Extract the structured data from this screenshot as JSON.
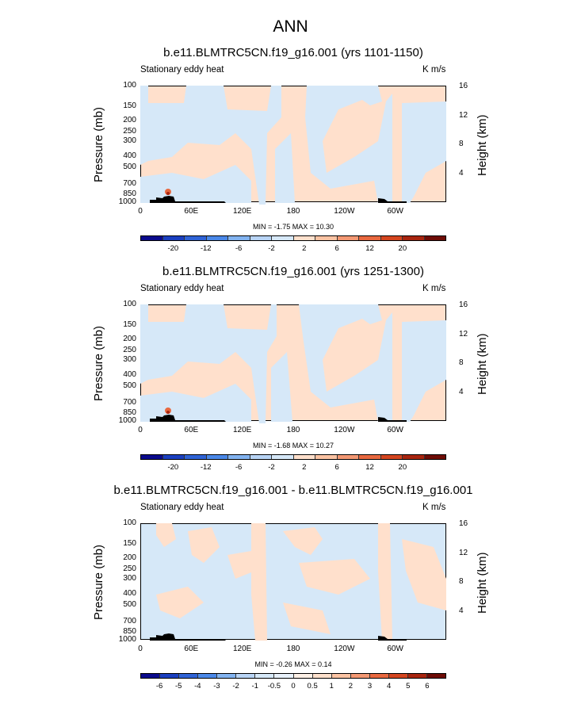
{
  "title": "ANN",
  "colors": {
    "positive_fill": "#ffe0cc",
    "negative_fill": "#d6e8f8",
    "topography": "#000000"
  },
  "colorbar_top": {
    "labels": [
      "-20",
      "-12",
      "-6",
      "-2",
      "2",
      "6",
      "12",
      "20"
    ],
    "colors": [
      "#0a0a8c",
      "#1a3fc0",
      "#2f63d6",
      "#4a88e8",
      "#82b3f0",
      "#b8d4f5",
      "#d6e8f8",
      "#ffe0cc",
      "#fbc3a3",
      "#f39873",
      "#e8683f",
      "#d4451f",
      "#a8250f",
      "#6e0c06"
    ]
  },
  "colorbar_diff": {
    "labels": [
      "-6",
      "-5",
      "-4",
      "-3",
      "-2",
      "-1",
      "-0.5",
      "0",
      "0.5",
      "1",
      "2",
      "3",
      "4",
      "5",
      "6"
    ],
    "colors": [
      "#0a0a8c",
      "#1a3fc0",
      "#2f63d6",
      "#4a88e8",
      "#82b3f0",
      "#b8d4f5",
      "#d6e8f8",
      "#e8f1fb",
      "#fff0e6",
      "#ffe0cc",
      "#fbc3a3",
      "#f39873",
      "#e8683f",
      "#d4451f",
      "#a8250f",
      "#6e0c06"
    ]
  },
  "chart_data": [
    {
      "type": "heatmap",
      "title": "b.e11.BLMTRC5CN.f19_g16.001 (yrs 1101-1150)",
      "variable": "Stationary eddy heat",
      "units": "K m/s",
      "ylabel": "Pressure (mb)",
      "y2label": "Height (km)",
      "yticks": [
        "100",
        "150",
        "200",
        "250",
        "300",
        "400",
        "500",
        "700",
        "850",
        "1000"
      ],
      "y2ticks": [
        "16",
        "12",
        "8",
        "4"
      ],
      "xticks": [
        "0",
        "60E",
        "120E",
        "180",
        "120W",
        "60W"
      ],
      "stats": "MIN =  -1.75  MAX =  10.30",
      "min": -1.75,
      "max": 10.3
    },
    {
      "type": "heatmap",
      "title": "b.e11.BLMTRC5CN.f19_g16.001 (yrs 1251-1300)",
      "variable": "Stationary eddy heat",
      "units": "K m/s",
      "ylabel": "Pressure (mb)",
      "y2label": "Height (km)",
      "yticks": [
        "100",
        "150",
        "200",
        "250",
        "300",
        "400",
        "500",
        "700",
        "850",
        "1000"
      ],
      "y2ticks": [
        "16",
        "12",
        "8",
        "4"
      ],
      "xticks": [
        "0",
        "60E",
        "120E",
        "180",
        "120W",
        "60W"
      ],
      "stats": "MIN =  -1.68  MAX =  10.27",
      "min": -1.68,
      "max": 10.27
    },
    {
      "type": "heatmap",
      "title": "b.e11.BLMTRC5CN.f19_g16.001 - b.e11.BLMTRC5CN.f19_g16.001",
      "variable": "Stationary eddy heat",
      "units": "K m/s",
      "ylabel": "Pressure (mb)",
      "y2label": "Height (km)",
      "yticks": [
        "100",
        "150",
        "200",
        "250",
        "300",
        "400",
        "500",
        "700",
        "850",
        "1000"
      ],
      "y2ticks": [
        "16",
        "12",
        "8",
        "4"
      ],
      "xticks": [
        "0",
        "60E",
        "120E",
        "180",
        "120W",
        "60W"
      ],
      "stats": "MIN =  -0.26  MAX =  0.14",
      "min": -0.26,
      "max": 0.14
    }
  ]
}
